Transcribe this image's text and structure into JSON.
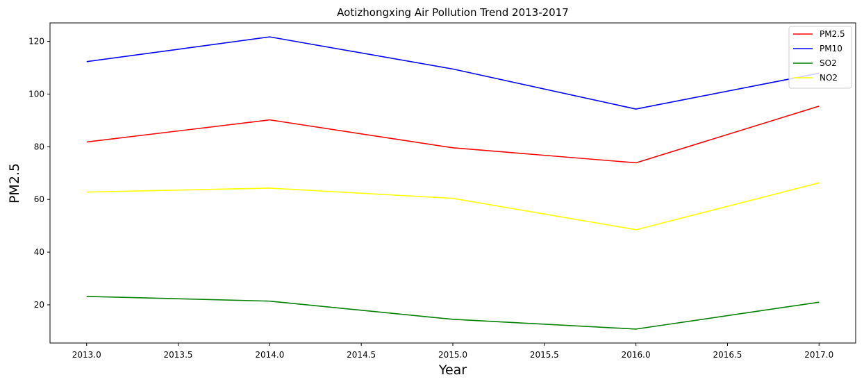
{
  "chart_data": {
    "type": "line",
    "title": "Aotizhongxing Air Pollution Trend 2013-2017",
    "xlabel": "Year",
    "ylabel": "PM2.5",
    "x": [
      2013,
      2014,
      2015,
      2016,
      2017
    ],
    "xlim": [
      2012.8,
      2017.2
    ],
    "ylim": [
      5.5,
      127
    ],
    "xticks": [
      2013.0,
      2013.5,
      2014.0,
      2014.5,
      2015.0,
      2015.5,
      2016.0,
      2016.5,
      2017.0
    ],
    "xtick_labels": [
      "2013.0",
      "2013.5",
      "2014.0",
      "2014.5",
      "2015.0",
      "2015.5",
      "2016.0",
      "2016.5",
      "2017.0"
    ],
    "yticks": [
      20,
      40,
      60,
      80,
      100,
      120
    ],
    "ytick_labels": [
      "20",
      "40",
      "60",
      "80",
      "100",
      "120"
    ],
    "grid": false,
    "legend_position": "top-right",
    "series": [
      {
        "name": "PM2.5",
        "color": "#ff0000",
        "values": [
          81.8,
          90.2,
          79.6,
          73.9,
          95.4
        ]
      },
      {
        "name": "PM10",
        "color": "#0000ff",
        "values": [
          112.3,
          121.7,
          109.5,
          94.3,
          107.9
        ]
      },
      {
        "name": "SO2",
        "color": "#008000",
        "values": [
          23.2,
          21.4,
          14.5,
          10.8,
          21.0
        ]
      },
      {
        "name": "NO2",
        "color": "#ffff00",
        "values": [
          62.8,
          64.3,
          60.4,
          48.5,
          66.3
        ]
      }
    ]
  }
}
